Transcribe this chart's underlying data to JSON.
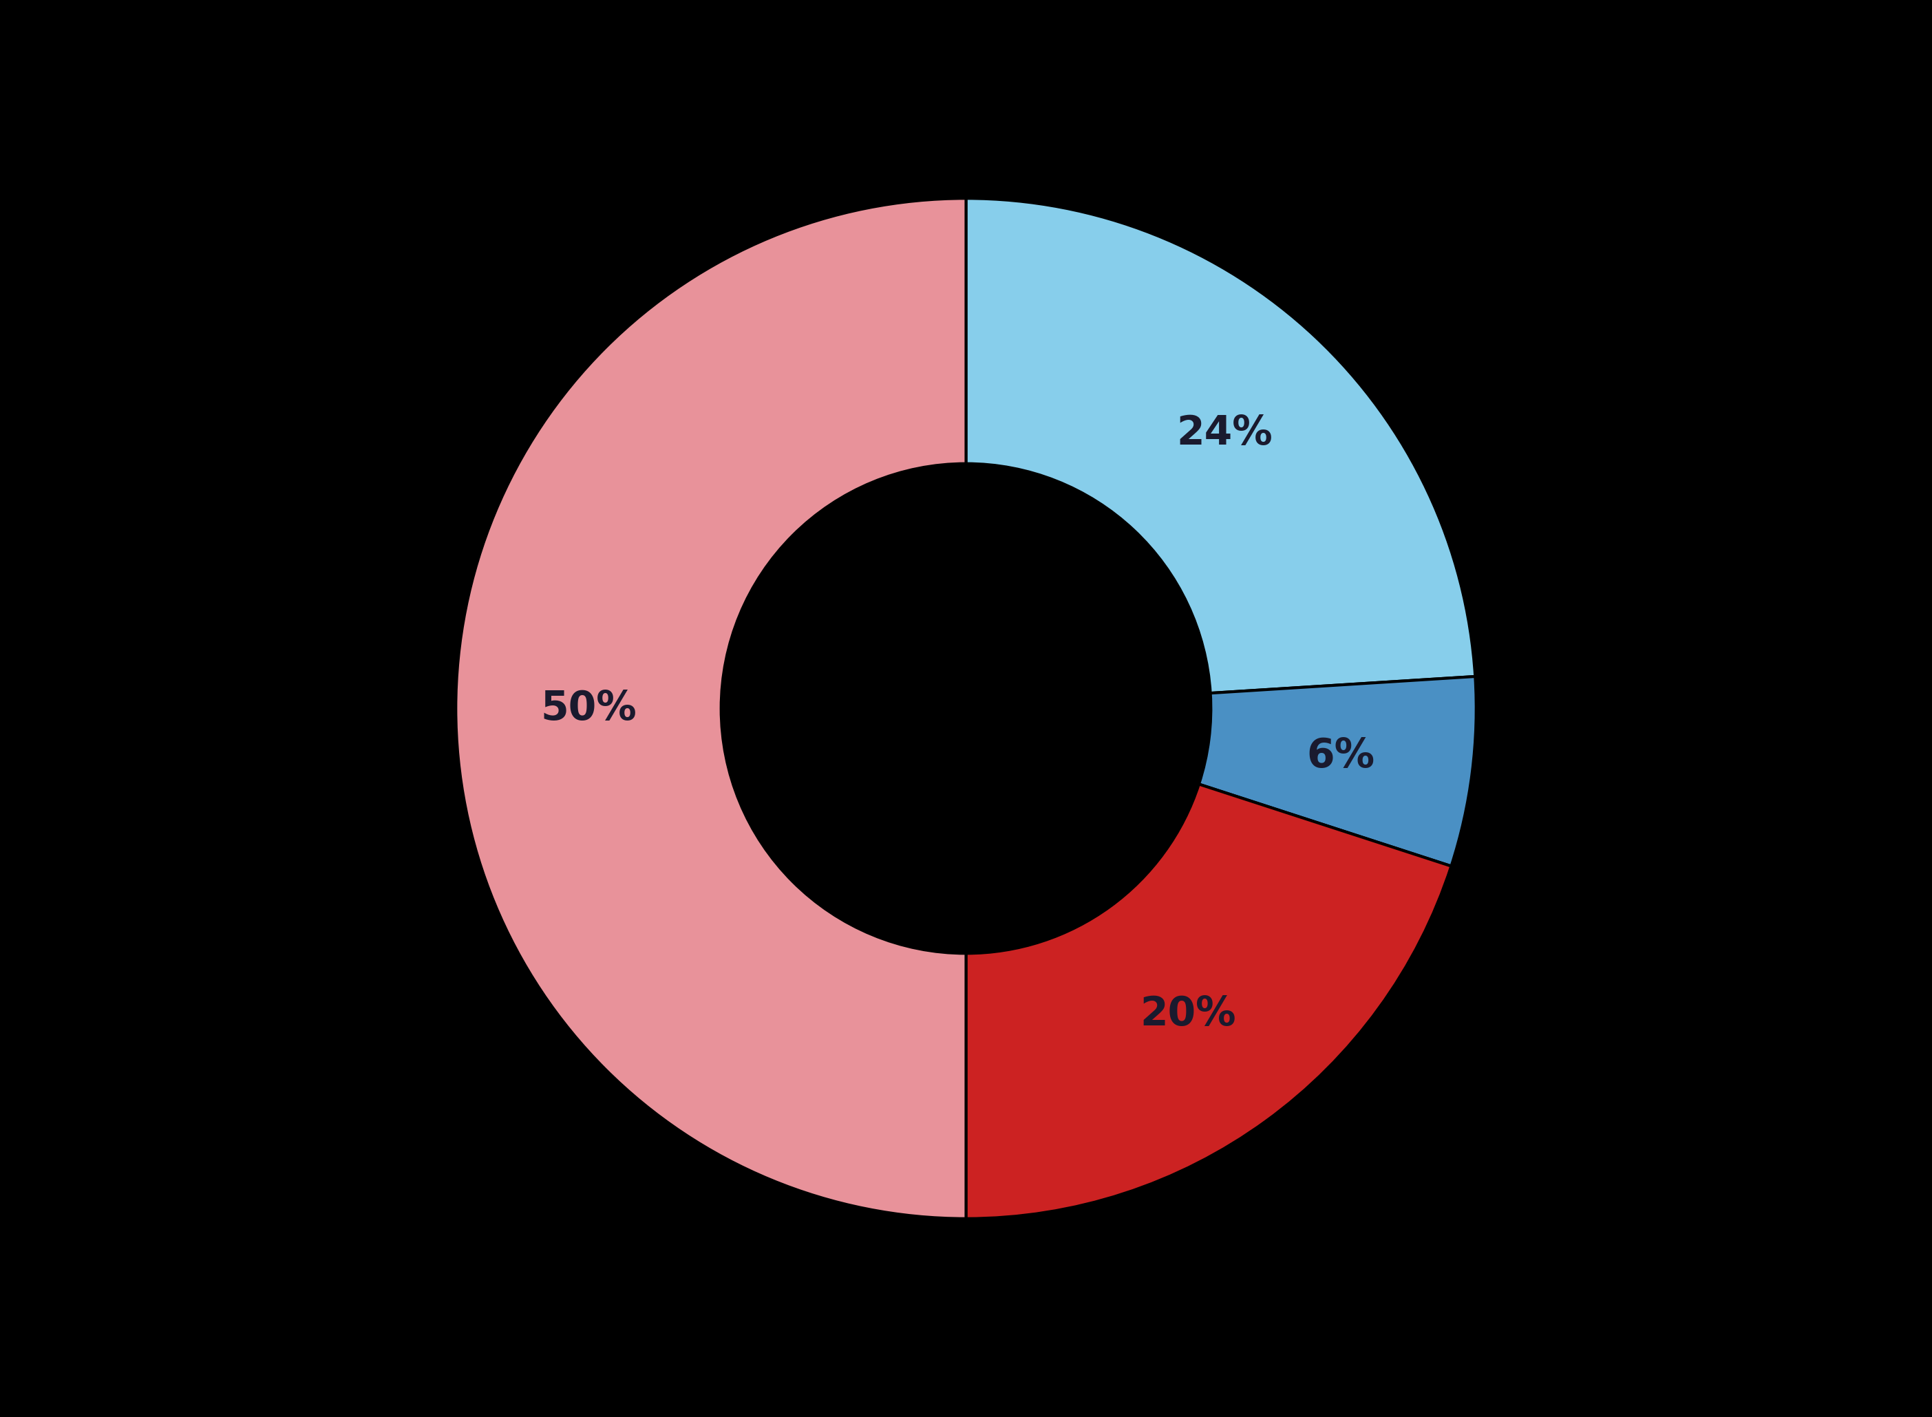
{
  "slices": [
    24,
    6,
    20,
    50
  ],
  "labels": [
    "24%",
    "6%",
    "20%",
    "50%"
  ],
  "colors": [
    "#87CEEB",
    "#4A90C4",
    "#CC2222",
    "#E8929A"
  ],
  "background_color": "#000000",
  "text_color": "#1a1a2e",
  "donut_width": 0.52,
  "label_fontsize": 42,
  "startangle": 90,
  "label_distance": 0.82
}
